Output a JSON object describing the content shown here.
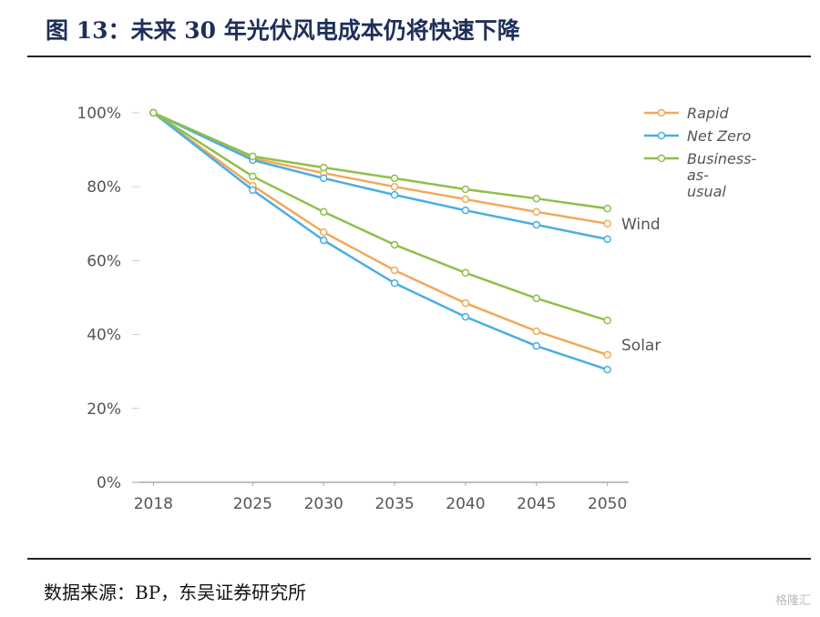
{
  "chart_data": {
    "type": "line",
    "title": "图 13：未来 30 年光伏风电成本仍将快速下降",
    "source": "数据来源：BP，东吴证券研究所",
    "watermark": "格隆汇",
    "x": [
      2018,
      2025,
      2030,
      2035,
      2040,
      2045,
      2050
    ],
    "xlim": [
      2016.5,
      2051.5
    ],
    "xticks": [
      2018,
      2025,
      2030,
      2035,
      2040,
      2045,
      2050
    ],
    "ylim": [
      0,
      100
    ],
    "yticks": [
      {
        "value": 0,
        "label": "0%"
      },
      {
        "value": 20,
        "label": "20%"
      },
      {
        "value": 40,
        "label": "40%"
      },
      {
        "value": 60,
        "label": "60%"
      },
      {
        "value": 80,
        "label": "80%"
      },
      {
        "value": 100,
        "label": "100%"
      }
    ],
    "grid": false,
    "legend": "top-right",
    "group_labels": {
      "wind": "Wind",
      "solar": "Solar"
    },
    "series": [
      {
        "name": "Rapid",
        "color": "#f0a95a",
        "wind": [
          100,
          87.7,
          83.7,
          80.0,
          76.6,
          73.2,
          70.0
        ],
        "solar": [
          100,
          80.3,
          67.7,
          57.4,
          48.5,
          40.9,
          34.5
        ]
      },
      {
        "name": "Net Zero",
        "color": "#4baee0",
        "wind": [
          100,
          87.2,
          82.3,
          77.8,
          73.6,
          69.7,
          65.8
        ],
        "solar": [
          100,
          79.1,
          65.5,
          53.9,
          44.8,
          36.9,
          30.5
        ]
      },
      {
        "name": "Business-as-usual",
        "color": "#8fbf4a",
        "wind": [
          100,
          88.2,
          85.2,
          82.3,
          79.3,
          76.8,
          74.1
        ],
        "solar": [
          100,
          82.8,
          73.2,
          64.3,
          56.7,
          49.8,
          43.8
        ]
      }
    ]
  }
}
